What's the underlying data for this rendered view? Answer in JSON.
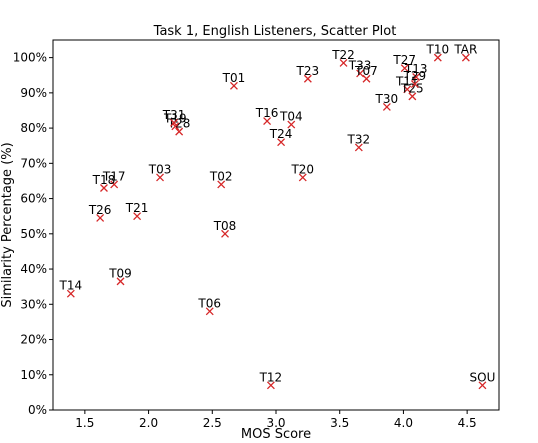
{
  "chart_data": {
    "type": "scatter",
    "title": "Task 1, English Listeners, Scatter Plot",
    "xlabel": "MOS Score",
    "ylabel": "Similarity Percentage (%)",
    "xlim": [
      1.25,
      4.75
    ],
    "ylim": [
      0,
      105
    ],
    "xticks": [
      1.5,
      2.0,
      2.5,
      3.0,
      3.5,
      4.0,
      4.5
    ],
    "xtick_labels": [
      "1.5",
      "2.0",
      "2.5",
      "3.0",
      "3.5",
      "4.0",
      "4.5"
    ],
    "yticks": [
      0,
      10,
      20,
      30,
      40,
      50,
      60,
      70,
      80,
      90,
      100
    ],
    "ytick_labels": [
      "0%",
      "10%",
      "20%",
      "30%",
      "40%",
      "50%",
      "60%",
      "70%",
      "80%",
      "90%",
      "100%"
    ],
    "marker": "x",
    "marker_color": "#d62728",
    "grid": false,
    "points": [
      {
        "label": "T01",
        "x": 2.67,
        "y": 92.0
      },
      {
        "label": "T02",
        "x": 2.57,
        "y": 64.0
      },
      {
        "label": "T03",
        "x": 2.09,
        "y": 66.0
      },
      {
        "label": "T04",
        "x": 3.12,
        "y": 81.0
      },
      {
        "label": "T06",
        "x": 2.48,
        "y": 28.0
      },
      {
        "label": "T08",
        "x": 2.6,
        "y": 50.0
      },
      {
        "label": "T09",
        "x": 1.78,
        "y": 36.5
      },
      {
        "label": "T10",
        "x": 4.27,
        "y": 100.0
      },
      {
        "label": "T11",
        "x": 4.03,
        "y": 91.0
      },
      {
        "label": "T12",
        "x": 2.96,
        "y": 7.0
      },
      {
        "label": "T13",
        "x": 4.1,
        "y": 94.5
      },
      {
        "label": "T14",
        "x": 1.39,
        "y": 33.0
      },
      {
        "label": "T16",
        "x": 2.93,
        "y": 82.0
      },
      {
        "label": "T17",
        "x": 1.73,
        "y": 64.0
      },
      {
        "label": "T18",
        "x": 1.65,
        "y": 63.0
      },
      {
        "label": "T19",
        "x": 2.21,
        "y": 80.5
      },
      {
        "label": "T20",
        "x": 3.21,
        "y": 66.0
      },
      {
        "label": "T21",
        "x": 1.91,
        "y": 55.0
      },
      {
        "label": "T22",
        "x": 3.53,
        "y": 98.5
      },
      {
        "label": "T23",
        "x": 3.25,
        "y": 94.0
      },
      {
        "label": "T24",
        "x": 3.04,
        "y": 76.0
      },
      {
        "label": "T25",
        "x": 4.07,
        "y": 89.0
      },
      {
        "label": "T26",
        "x": 1.62,
        "y": 54.5
      },
      {
        "label": "T27",
        "x": 4.01,
        "y": 97.0
      },
      {
        "label": "T28",
        "x": 2.24,
        "y": 79.0
      },
      {
        "label": "T29",
        "x": 4.09,
        "y": 92.5
      },
      {
        "label": "T30",
        "x": 3.87,
        "y": 86.0
      },
      {
        "label": "T31",
        "x": 2.2,
        "y": 81.5
      },
      {
        "label": "T32",
        "x": 3.65,
        "y": 74.5
      },
      {
        "label": "T33",
        "x": 3.66,
        "y": 95.5
      },
      {
        "label": "T07",
        "x": 3.71,
        "y": 94.0
      },
      {
        "label": "TAR",
        "x": 4.49,
        "y": 100.0
      },
      {
        "label": "SOU",
        "x": 4.62,
        "y": 7.0
      }
    ]
  }
}
